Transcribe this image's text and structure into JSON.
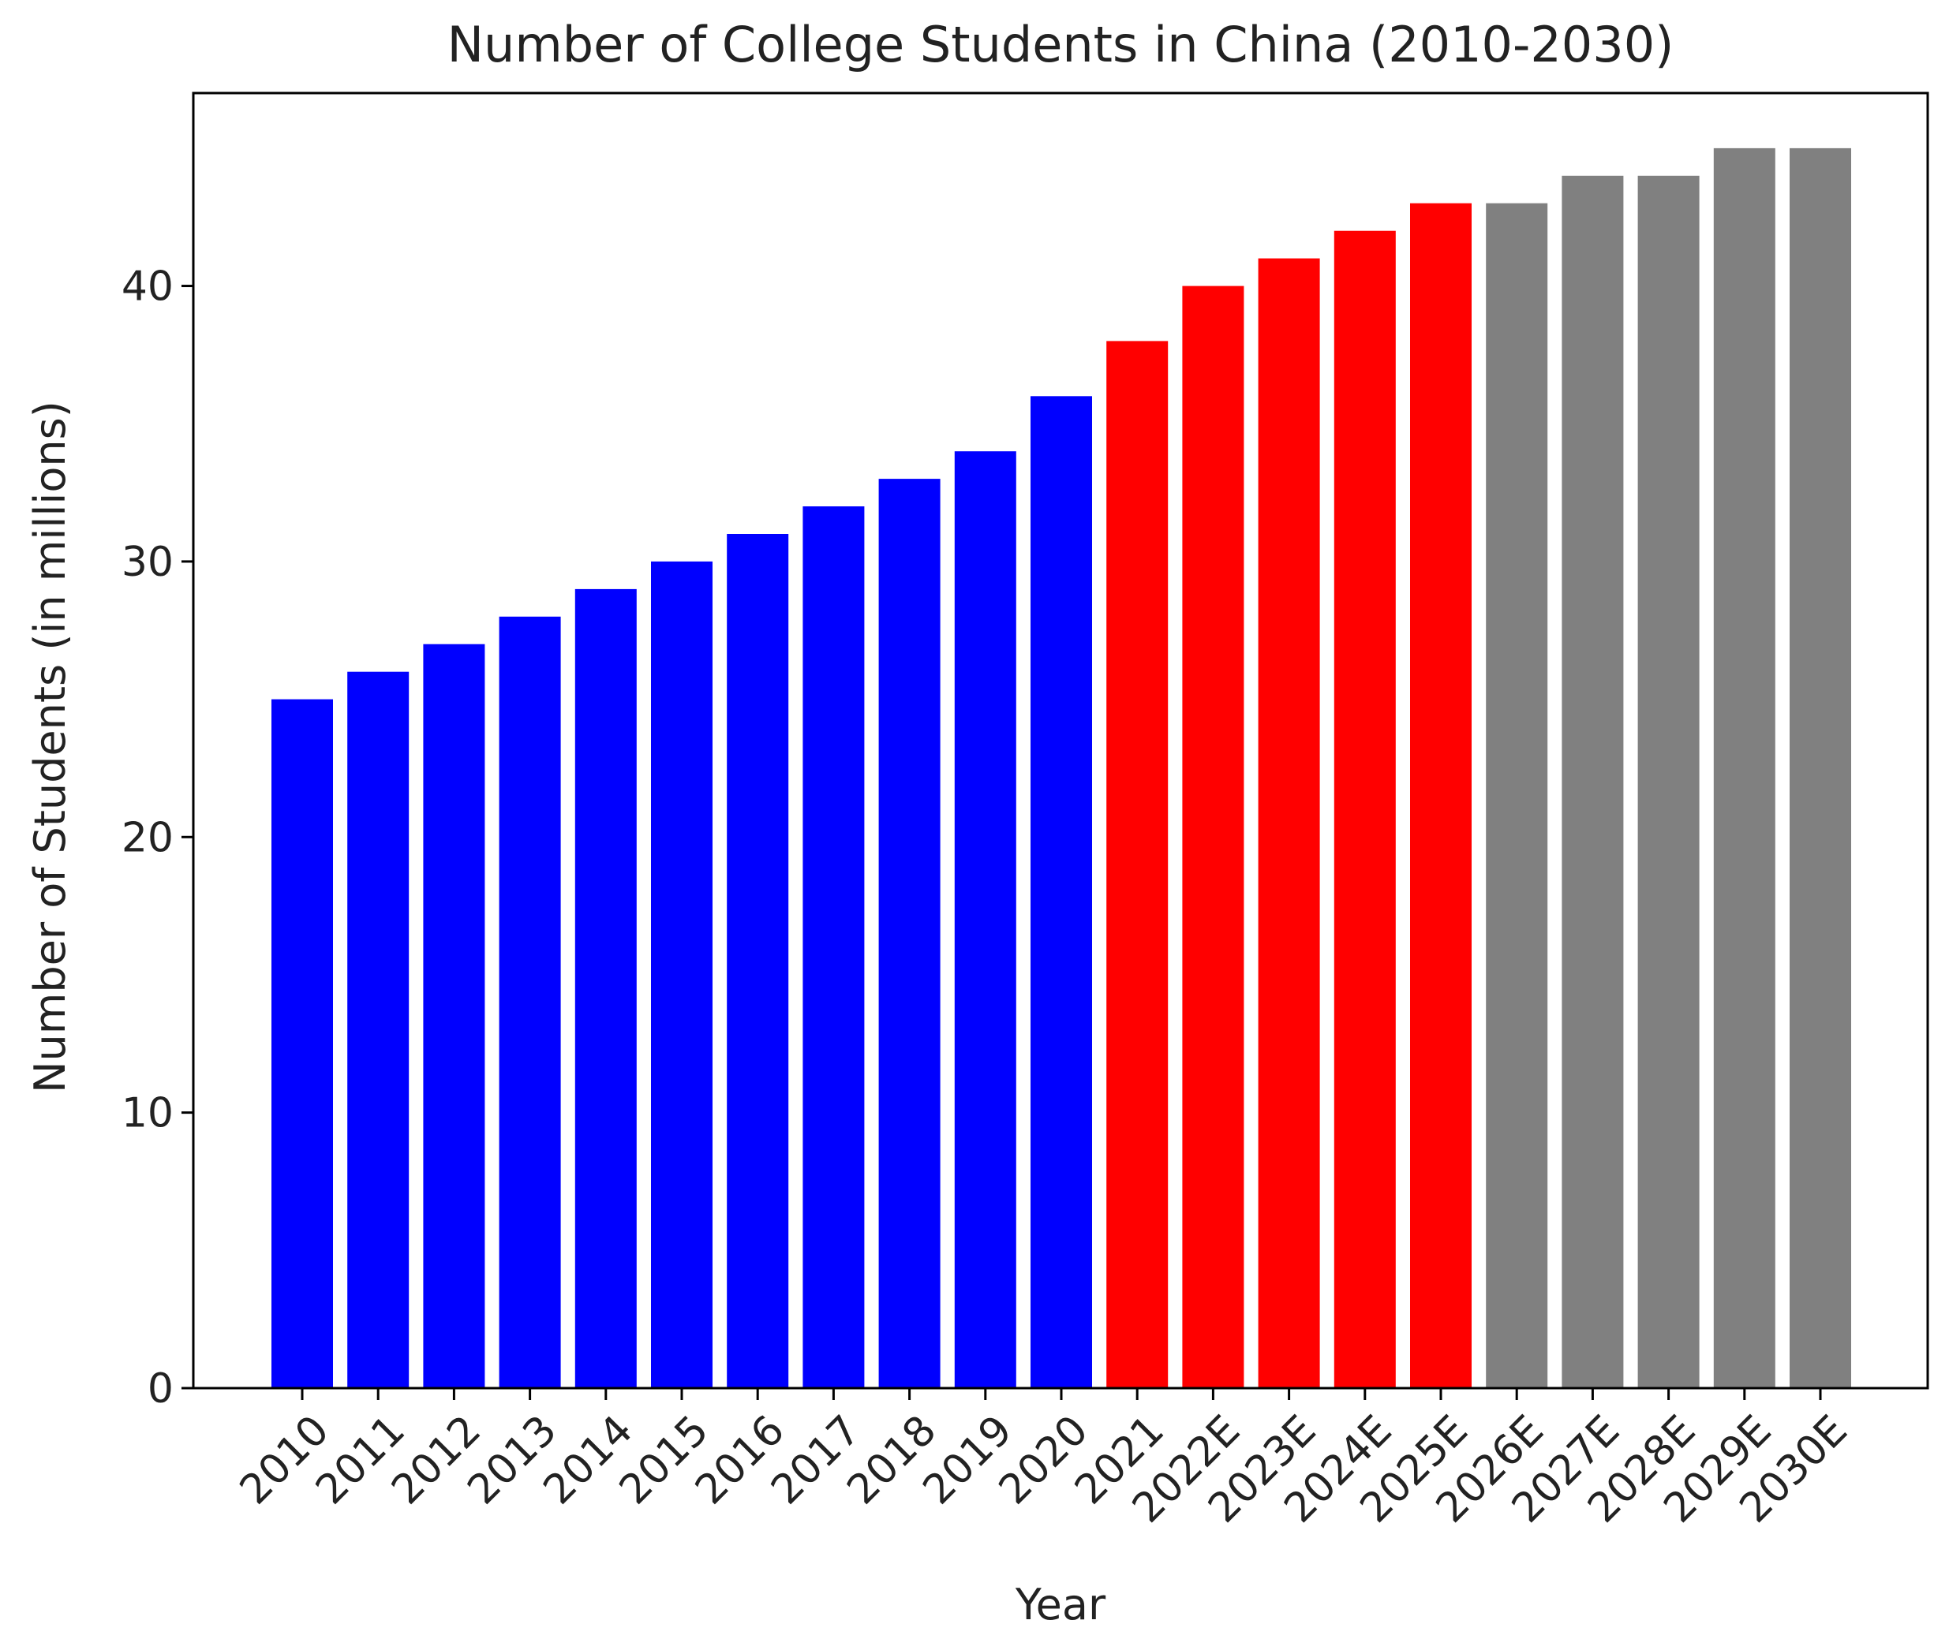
{
  "chart_data": {
    "type": "bar",
    "title": "Number of College Students in China (2010-2030)",
    "xlabel": "Year",
    "ylabel": "Number of Students (in millions)",
    "ylim": [
      0,
      47
    ],
    "yticks": [
      0,
      10,
      20,
      30,
      40
    ],
    "grid": false,
    "legend": "none",
    "categories": [
      "2010",
      "2011",
      "2012",
      "2013",
      "2014",
      "2015",
      "2016",
      "2017",
      "2018",
      "2019",
      "2020",
      "2021",
      "2022E",
      "2023E",
      "2024E",
      "2025E",
      "2026E",
      "2027E",
      "2028E",
      "2029E",
      "2030E"
    ],
    "values": [
      25,
      26,
      27,
      28,
      29,
      30,
      31,
      32,
      33,
      34,
      36,
      38,
      40,
      41,
      42,
      43,
      43,
      44,
      44,
      45,
      45
    ],
    "bar_colors": [
      "#0000ff",
      "#0000ff",
      "#0000ff",
      "#0000ff",
      "#0000ff",
      "#0000ff",
      "#0000ff",
      "#0000ff",
      "#0000ff",
      "#0000ff",
      "#0000ff",
      "#ff0000",
      "#ff0000",
      "#ff0000",
      "#ff0000",
      "#ff0000",
      "#808080",
      "#808080",
      "#808080",
      "#808080",
      "#808080"
    ]
  }
}
